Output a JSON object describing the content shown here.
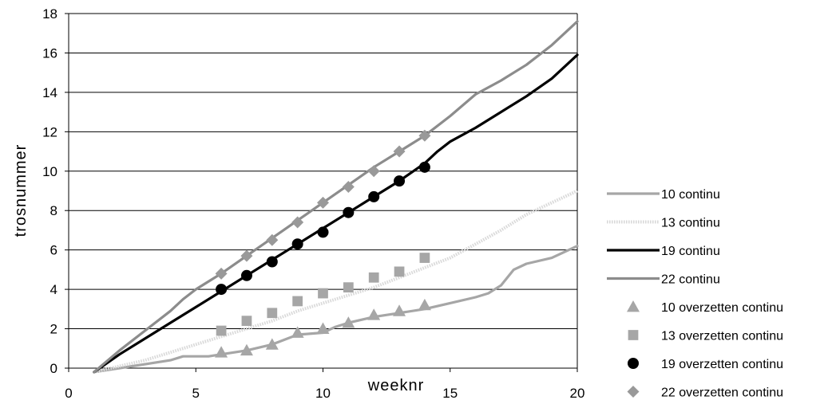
{
  "chart_data": {
    "type": "line",
    "xlabel": "weeknr",
    "ylabel": "trosnummer",
    "xlim": [
      0,
      20
    ],
    "ylim": [
      0,
      18
    ],
    "xticks": [
      0,
      5,
      10,
      15,
      20
    ],
    "yticks": [
      0,
      2,
      4,
      6,
      8,
      10,
      12,
      14,
      16,
      18
    ],
    "grid": "horizontal",
    "legend_position": "right",
    "series": [
      {
        "name": "10 continu",
        "kind": "line",
        "color": "#a6a6a6",
        "style": "solid",
        "x": [
          1,
          2,
          3,
          4,
          4.5,
          5,
          5.5,
          6,
          7,
          8,
          9,
          10,
          10.5,
          11,
          12,
          13,
          14,
          15,
          16,
          16.5,
          17,
          17.5,
          18,
          19,
          20
        ],
        "y": [
          -0.2,
          0,
          0.2,
          0.4,
          0.6,
          0.6,
          0.6,
          0.7,
          0.9,
          1.2,
          1.7,
          1.8,
          2.1,
          2.3,
          2.6,
          2.8,
          3.0,
          3.3,
          3.6,
          3.8,
          4.2,
          5.0,
          5.3,
          5.6,
          6.2
        ]
      },
      {
        "name": "13 continu",
        "kind": "line",
        "color": "#d9d9d9",
        "style": "dotted",
        "x": [
          1,
          2,
          3,
          4,
          5,
          6,
          7,
          8,
          9,
          10,
          11,
          12,
          13,
          14,
          15,
          16,
          17,
          18,
          19,
          20
        ],
        "y": [
          -0.2,
          0.1,
          0.4,
          0.8,
          1.2,
          1.6,
          2.0,
          2.4,
          2.9,
          3.3,
          3.7,
          4.1,
          4.6,
          5.1,
          5.6,
          6.3,
          7.0,
          7.8,
          8.4,
          9.0
        ]
      },
      {
        "name": "19 continu",
        "kind": "line",
        "color": "#000000",
        "style": "solid",
        "x": [
          1,
          2,
          3,
          4,
          5,
          6,
          7,
          8,
          9,
          10,
          11,
          12,
          13,
          14,
          14.5,
          15,
          16,
          17,
          18,
          19,
          20
        ],
        "y": [
          -0.2,
          0.7,
          1.5,
          2.3,
          3.1,
          3.9,
          4.7,
          5.5,
          6.3,
          7.1,
          7.9,
          8.7,
          9.5,
          10.4,
          11.0,
          11.5,
          12.2,
          13.0,
          13.8,
          14.7,
          15.9
        ]
      },
      {
        "name": "22 continu",
        "kind": "line",
        "color": "#8c8c8c",
        "style": "solid",
        "x": [
          1,
          2,
          3,
          4,
          4.5,
          5,
          6,
          7,
          8,
          9,
          10,
          11,
          12,
          13,
          14,
          15,
          16,
          17,
          18,
          19,
          20
        ],
        "y": [
          -0.2,
          0.9,
          1.9,
          2.9,
          3.5,
          4.0,
          4.8,
          5.7,
          6.6,
          7.5,
          8.4,
          9.3,
          10.2,
          11.0,
          11.8,
          12.8,
          13.9,
          14.6,
          15.4,
          16.4,
          17.6
        ]
      },
      {
        "name": "10 overzetten continu",
        "kind": "scatter",
        "marker": "triangle",
        "color": "#a6a6a6",
        "x": [
          6,
          7,
          8,
          9,
          10,
          11,
          12,
          13,
          14
        ],
        "y": [
          0.8,
          0.9,
          1.2,
          1.8,
          2.0,
          2.3,
          2.7,
          2.9,
          3.2
        ]
      },
      {
        "name": "13 overzetten continu",
        "kind": "scatter",
        "marker": "square",
        "color": "#a6a6a6",
        "x": [
          6,
          7,
          8,
          9,
          10,
          11,
          12,
          13,
          14
        ],
        "y": [
          1.9,
          2.4,
          2.8,
          3.4,
          3.8,
          4.1,
          4.6,
          4.9,
          5.6
        ]
      },
      {
        "name": "19 overzetten continu",
        "kind": "scatter",
        "marker": "circle",
        "color": "#000000",
        "x": [
          6,
          7,
          8,
          9,
          10,
          11,
          12,
          13,
          14
        ],
        "y": [
          4.0,
          4.7,
          5.4,
          6.3,
          6.9,
          7.9,
          8.7,
          9.5,
          10.2
        ]
      },
      {
        "name": "22 overzetten continu",
        "kind": "scatter",
        "marker": "diamond",
        "color": "#999999",
        "x": [
          6,
          7,
          8,
          9,
          10,
          11,
          12,
          13,
          14
        ],
        "y": [
          4.8,
          5.7,
          6.5,
          7.4,
          8.4,
          9.2,
          10.0,
          11.0,
          11.8
        ]
      }
    ]
  }
}
